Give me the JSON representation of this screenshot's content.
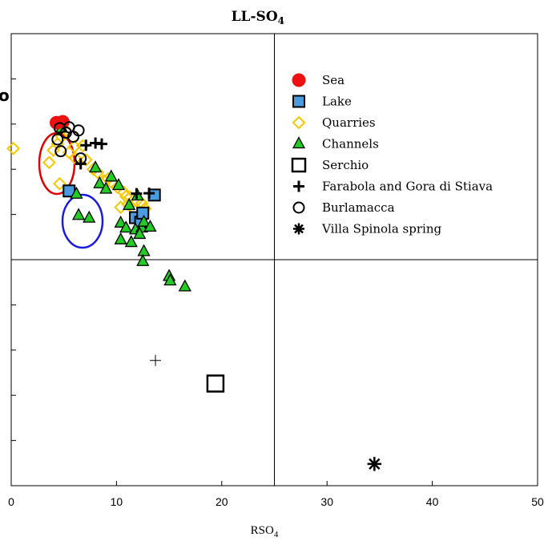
{
  "chart_data": {
    "type": "scatter",
    "title_main": "LL-SO",
    "title_sub": "4",
    "xlabel_main": "RSO",
    "xlabel_sub": "4",
    "xlim": [
      0,
      50
    ],
    "xticks": [
      "0",
      "10",
      "20",
      "30",
      "40",
      "50"
    ],
    "ylim": [
      0,
      100
    ],
    "yticks_minor": [
      10,
      20,
      30,
      40,
      60,
      70,
      80,
      90
    ],
    "grid": false,
    "divider_lines": {
      "x": 25,
      "y": 50
    },
    "legend_position": "top-right",
    "series": [
      {
        "name": "Sea",
        "marker": "filled-circle",
        "color": "#ee1111",
        "points": [
          [
            4.3,
            80.3
          ],
          [
            4.9,
            80.5
          ]
        ]
      },
      {
        "name": "Lake",
        "marker": "filled-square",
        "color": "#4a9be0",
        "points": [
          [
            5.5,
            65.2
          ],
          [
            11.8,
            59.3
          ],
          [
            12.3,
            58.3
          ],
          [
            13.6,
            64.3
          ],
          [
            12.5,
            60.3
          ]
        ]
      },
      {
        "name": "Quarries",
        "marker": "open-diamond",
        "color": "#f5c800",
        "points": [
          [
            0.2,
            74.6
          ],
          [
            3.6,
            71.5
          ],
          [
            4.0,
            74.2
          ],
          [
            4.4,
            75.6
          ],
          [
            4.8,
            77.2
          ],
          [
            5.5,
            73.7
          ],
          [
            6.0,
            75.0
          ],
          [
            4.6,
            66.8
          ],
          [
            6.1,
            72.4
          ],
          [
            7.1,
            72.1
          ],
          [
            7.8,
            70.0
          ],
          [
            8.2,
            69.3
          ],
          [
            8.8,
            67.5
          ],
          [
            9.5,
            67.2
          ],
          [
            10.1,
            66.0
          ],
          [
            10.7,
            64.9
          ],
          [
            11.3,
            63.8
          ],
          [
            11.9,
            63.0
          ],
          [
            12.4,
            62.5
          ],
          [
            10.4,
            61.6
          ],
          [
            11.1,
            62.2
          ],
          [
            11.8,
            60.8
          ],
          [
            12.3,
            60.0
          ],
          [
            9.2,
            67.9
          ],
          [
            10.9,
            64.0
          ],
          [
            12.7,
            61.3
          ],
          [
            5.2,
            78.6
          ],
          [
            6.8,
            75.2
          ]
        ]
      },
      {
        "name": "Channels",
        "marker": "filled-triangle",
        "color": "#22cc22",
        "points": [
          [
            4.8,
            79.1
          ],
          [
            6.2,
            64.5
          ],
          [
            6.4,
            59.8
          ],
          [
            7.4,
            59.2
          ],
          [
            8.0,
            70.3
          ],
          [
            8.4,
            66.8
          ],
          [
            9.0,
            65.6
          ],
          [
            9.5,
            68.3
          ],
          [
            10.2,
            66.4
          ],
          [
            10.4,
            58.1
          ],
          [
            10.9,
            57.0
          ],
          [
            11.8,
            56.6
          ],
          [
            12.4,
            57.0
          ],
          [
            12.6,
            58.3
          ],
          [
            13.2,
            57.2
          ],
          [
            10.4,
            54.4
          ],
          [
            11.4,
            53.8
          ],
          [
            12.2,
            55.6
          ],
          [
            12.6,
            51.8
          ],
          [
            12.5,
            49.6
          ],
          [
            15.0,
            46.3
          ],
          [
            15.1,
            45.3
          ],
          [
            16.5,
            44.0
          ],
          [
            12.0,
            64.1
          ],
          [
            11.2,
            62.0
          ]
        ]
      },
      {
        "name": "Serchio",
        "marker": "open-square",
        "color": "#000000",
        "points": [
          [
            19.4,
            22.6
          ]
        ]
      },
      {
        "name": "Farabola and Gora di Stiava",
        "marker": "plus",
        "color": "#000000",
        "points": [
          [
            7.1,
            75.3
          ],
          [
            8.0,
            75.8
          ],
          [
            8.6,
            75.6
          ],
          [
            6.6,
            71.2
          ],
          [
            11.9,
            64.6
          ],
          [
            13.1,
            64.7
          ]
        ]
      },
      {
        "name": "Burlamacca",
        "marker": "open-circle",
        "color": "#000000",
        "points": [
          [
            4.4,
            76.6
          ],
          [
            4.7,
            74.0
          ],
          [
            5.2,
            78.1
          ],
          [
            5.5,
            79.3
          ],
          [
            5.9,
            77.2
          ],
          [
            4.6,
            79.1
          ],
          [
            6.4,
            78.6
          ],
          [
            6.6,
            72.4
          ]
        ]
      },
      {
        "name": "Villa Spinola spring",
        "marker": "asterisk",
        "color": "#000000",
        "points": [
          [
            34.5,
            4.8
          ]
        ]
      }
    ],
    "extra_points": [
      [
        13.7,
        27.7
      ]
    ]
  }
}
